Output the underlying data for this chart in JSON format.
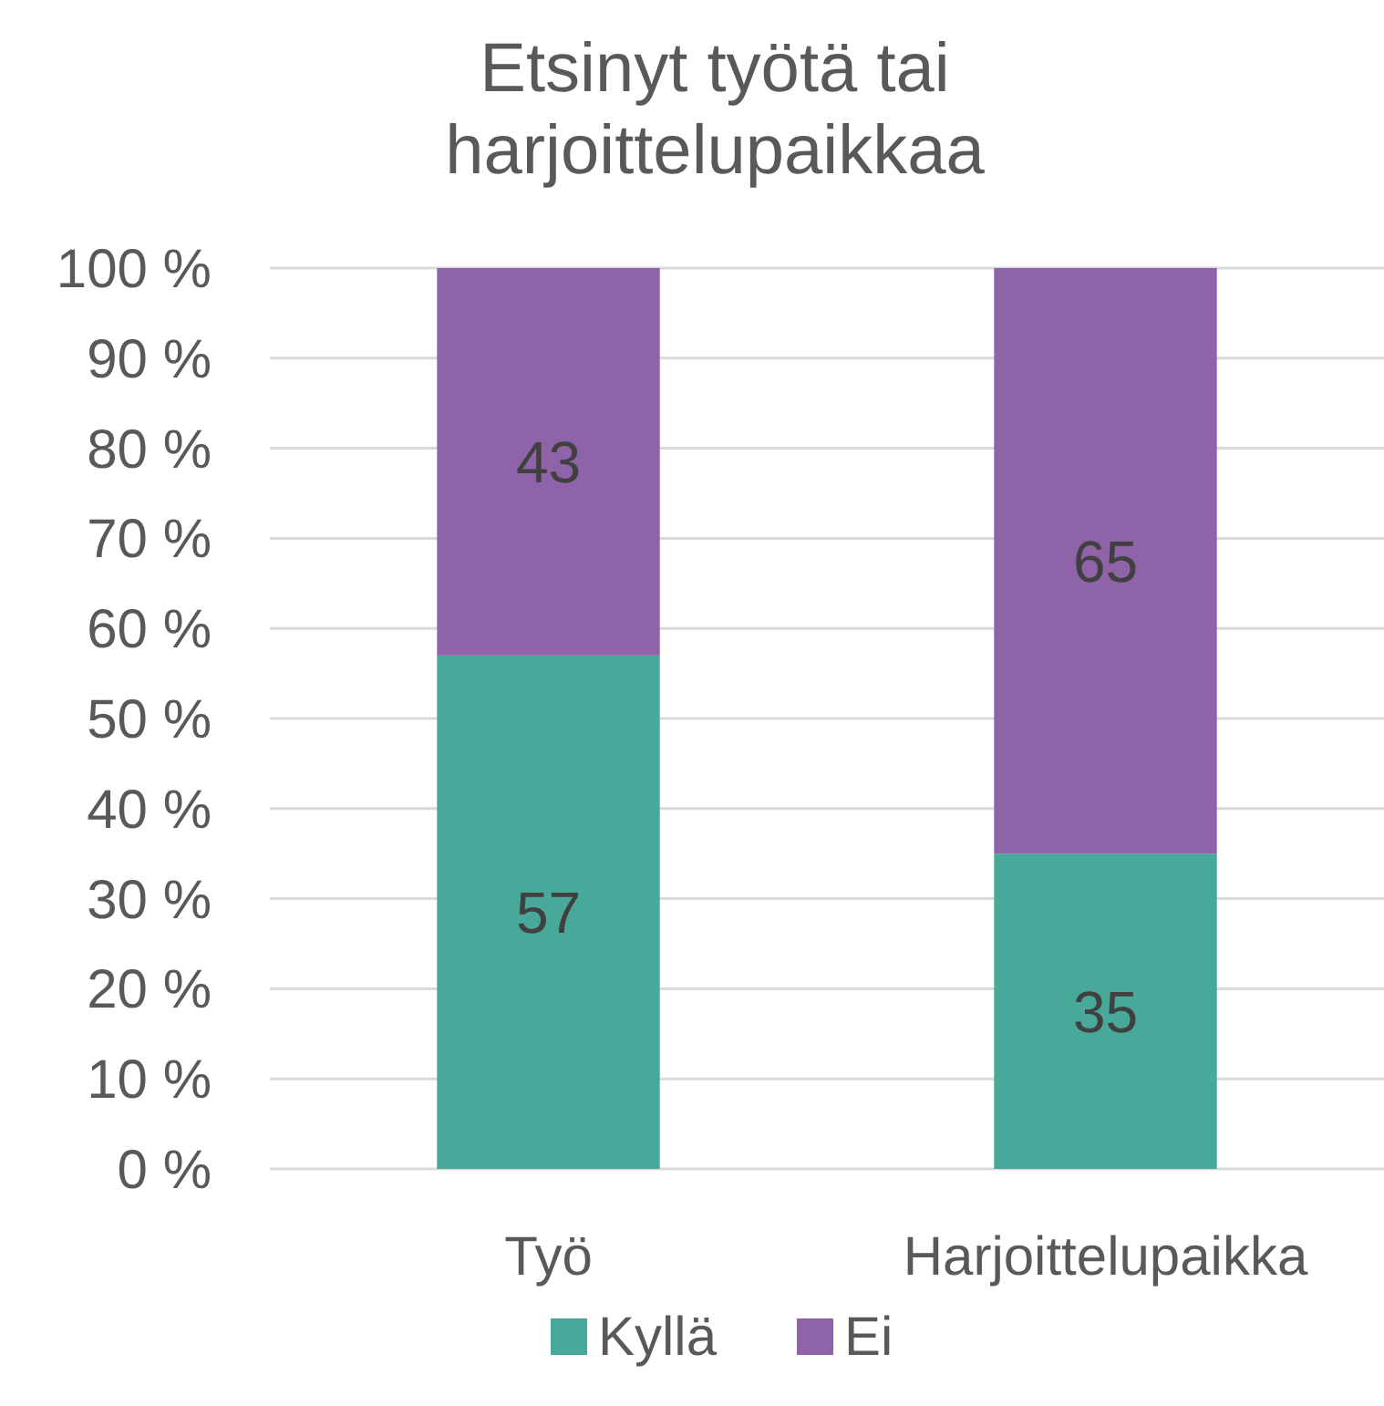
{
  "chart_data": {
    "type": "bar",
    "title": "Etsinyt työtä tai harjoittelupaikkaa",
    "stacked": true,
    "categories": [
      "Työ",
      "Harjoittelupaikka"
    ],
    "series": [
      {
        "name": "Kyllä",
        "color": "#48a99a",
        "values": [
          57,
          35
        ]
      },
      {
        "name": "Ei",
        "color": "#8e63a8",
        "values": [
          43,
          65
        ]
      }
    ],
    "ylim": [
      0,
      100
    ],
    "yticks": [
      {
        "value": 0,
        "label": "0 %"
      },
      {
        "value": 10,
        "label": "10 %"
      },
      {
        "value": 20,
        "label": "20 %"
      },
      {
        "value": 30,
        "label": "30 %"
      },
      {
        "value": 40,
        "label": "40 %"
      },
      {
        "value": 50,
        "label": "50 %"
      },
      {
        "value": 60,
        "label": "60 %"
      },
      {
        "value": 70,
        "label": "70 %"
      },
      {
        "value": 80,
        "label": "80 %"
      },
      {
        "value": 90,
        "label": "90 %"
      },
      {
        "value": 100,
        "label": "100 %"
      }
    ],
    "grid": "y",
    "data_labels": true,
    "legend": "bottom"
  }
}
